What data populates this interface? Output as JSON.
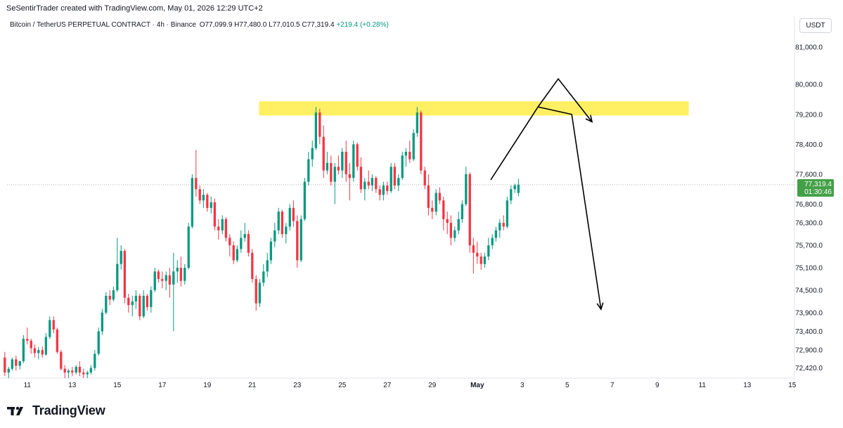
{
  "header": {
    "credit": "SeSentirTrader created with TradingView.com, May 01, 2026 12:29 UTC+2"
  },
  "symbol": {
    "title": "Bitcoin / TetherUS PERPETUAL CONTRACT · 4h · Binance",
    "ohlc": "O77,099.9  H77,480.0  L77,010.5  C77,319.4",
    "change": "+219.4 (+0.28%)"
  },
  "currency_button": "USDT",
  "price_badge": {
    "price": "77,319.4",
    "countdown": "01:30:46"
  },
  "footer": {
    "brand": "TradingView"
  },
  "colors": {
    "up": "#089981",
    "down": "#f23645",
    "zone": "#ffeb3b",
    "badge": "#43a047",
    "arrows": "#000000"
  },
  "chart_data": {
    "type": "candlestick",
    "interval": "4h",
    "y_scale_ticks": [
      "81,000.0",
      "80,000.0",
      "79,200.0",
      "78,400.0",
      "77,600.0",
      "76,800.0",
      "76,300.0",
      "75,700.0",
      "75,100.0",
      "74,500.0",
      "73,900.0",
      "73,400.0",
      "72,900.0",
      "72,420.0"
    ],
    "y_tick_values": [
      81000,
      80000,
      79200,
      78400,
      77600,
      76800,
      76300,
      75700,
      75100,
      74500,
      73900,
      73400,
      72900,
      72420
    ],
    "ylim": [
      72150,
      82200
    ],
    "x_ticks": [
      "11",
      "13",
      "15",
      "17",
      "19",
      "21",
      "23",
      "25",
      "27",
      "29",
      "May",
      "3",
      "5",
      "7",
      "9",
      "11",
      "13",
      "15"
    ],
    "x_tick_days": [
      11,
      13,
      15,
      17,
      19,
      21,
      23,
      25,
      27,
      29,
      31,
      33,
      35,
      37,
      39,
      41,
      43,
      45
    ],
    "xlim": [
      10.5,
      46.0
    ],
    "last_price_line": 77319.4,
    "resistance_zone": {
      "from_day": 21.3,
      "to_day": 40.4,
      "low": 79170,
      "high": 79550
    },
    "projection_path": [
      {
        "day": 31.6,
        "price": 77450
      },
      {
        "day": 33.7,
        "price": 79400
      },
      {
        "day": 34.6,
        "price": 80150
      },
      {
        "day": 36.1,
        "price": 79000
      }
    ],
    "projection_path_2": [
      {
        "day": 33.7,
        "price": 79400
      },
      {
        "day": 35.2,
        "price": 79200
      },
      {
        "day": 36.5,
        "price": 73990
      }
    ],
    "candles": [
      [
        10.0,
        72700,
        72850,
        72200,
        72300
      ],
      [
        10.17,
        72300,
        72450,
        72150,
        72400
      ],
      [
        10.33,
        72400,
        72700,
        72350,
        72650
      ],
      [
        10.5,
        72650,
        72750,
        72350,
        72480
      ],
      [
        10.67,
        72480,
        72620,
        72380,
        72600
      ],
      [
        10.83,
        72600,
        73300,
        72550,
        73200
      ],
      [
        11.0,
        73200,
        73500,
        73050,
        73150
      ],
      [
        11.17,
        73150,
        73200,
        72800,
        72950
      ],
      [
        11.33,
        72950,
        73050,
        72700,
        72820
      ],
      [
        11.5,
        72820,
        72980,
        72650,
        72900
      ],
      [
        11.67,
        72900,
        73000,
        72700,
        72780
      ],
      [
        11.83,
        72780,
        73350,
        72750,
        73250
      ],
      [
        12.0,
        73250,
        73800,
        73200,
        73700
      ],
      [
        12.17,
        73700,
        73800,
        73350,
        73450
      ],
      [
        12.33,
        73450,
        73500,
        72800,
        72850
      ],
      [
        12.5,
        72850,
        72900,
        72350,
        72400
      ],
      [
        12.67,
        72400,
        72500,
        72150,
        72300
      ],
      [
        12.83,
        72300,
        72400,
        72150,
        72350
      ],
      [
        13.0,
        72350,
        72450,
        72200,
        72300
      ],
      [
        13.17,
        72300,
        72500,
        72250,
        72450
      ],
      [
        13.33,
        72450,
        72600,
        72200,
        72300
      ],
      [
        13.5,
        72300,
        72400,
        72150,
        72250
      ],
      [
        13.67,
        72250,
        72350,
        72150,
        72300
      ],
      [
        13.83,
        72300,
        72500,
        72250,
        72420
      ],
      [
        14.0,
        72420,
        72900,
        72350,
        72800
      ],
      [
        14.17,
        72800,
        73500,
        72750,
        73400
      ],
      [
        14.33,
        73400,
        74000,
        73300,
        73900
      ],
      [
        14.5,
        73900,
        74450,
        73850,
        74350
      ],
      [
        14.67,
        74350,
        74500,
        74100,
        74250
      ],
      [
        14.83,
        74250,
        74600,
        74200,
        74500
      ],
      [
        15.0,
        74500,
        75900,
        74450,
        75200
      ],
      [
        15.17,
        75200,
        75700,
        75050,
        75550
      ],
      [
        15.33,
        75550,
        75600,
        74150,
        74300
      ],
      [
        15.5,
        74300,
        74400,
        73900,
        74100
      ],
      [
        15.67,
        74100,
        74350,
        73800,
        74200
      ],
      [
        15.83,
        74200,
        74500,
        74000,
        74350
      ],
      [
        16.0,
        74350,
        74400,
        73700,
        73800
      ],
      [
        16.17,
        73800,
        74500,
        73750,
        74350
      ],
      [
        16.33,
        74350,
        74400,
        73950,
        74050
      ],
      [
        16.5,
        74050,
        74600,
        73900,
        74500
      ],
      [
        16.67,
        74500,
        75100,
        74450,
        75000
      ],
      [
        16.83,
        75000,
        75050,
        74700,
        74800
      ],
      [
        17.0,
        74800,
        75000,
        74550,
        74750
      ],
      [
        17.17,
        74750,
        75000,
        74500,
        74900
      ],
      [
        17.33,
        74900,
        75100,
        74300,
        74650
      ],
      [
        17.5,
        74650,
        75500,
        73400,
        75000
      ],
      [
        17.67,
        75000,
        75300,
        74700,
        75100
      ],
      [
        17.83,
        75100,
        75400,
        74600,
        74750
      ],
      [
        18.0,
        74750,
        75200,
        74650,
        75100
      ],
      [
        18.17,
        75100,
        76300,
        75050,
        76200
      ],
      [
        18.33,
        76200,
        77600,
        76150,
        77500
      ],
      [
        18.5,
        77500,
        78250,
        77000,
        77200
      ],
      [
        18.67,
        77200,
        77300,
        76800,
        76900
      ],
      [
        18.83,
        76900,
        77200,
        76700,
        77050
      ],
      [
        19.0,
        77050,
        77100,
        76600,
        76700
      ],
      [
        19.17,
        76700,
        77000,
        76550,
        76850
      ],
      [
        19.33,
        76850,
        76950,
        76100,
        76200
      ],
      [
        19.5,
        76200,
        76400,
        75850,
        76100
      ],
      [
        19.67,
        76100,
        76500,
        76000,
        76400
      ],
      [
        19.83,
        76400,
        76450,
        75800,
        75900
      ],
      [
        20.0,
        75900,
        76000,
        75400,
        75700
      ],
      [
        20.17,
        75700,
        75800,
        75200,
        75300
      ],
      [
        20.33,
        75300,
        75700,
        75250,
        75600
      ],
      [
        20.5,
        75600,
        76100,
        75500,
        75900
      ],
      [
        20.67,
        75900,
        76300,
        75800,
        76000
      ],
      [
        20.83,
        76000,
        76100,
        75400,
        75500
      ],
      [
        21.0,
        75500,
        75600,
        74700,
        74800
      ],
      [
        21.17,
        74800,
        74900,
        73950,
        74150
      ],
      [
        21.33,
        74150,
        74800,
        74050,
        74700
      ],
      [
        21.5,
        74700,
        75200,
        74600,
        75000
      ],
      [
        21.67,
        75000,
        75500,
        74850,
        75300
      ],
      [
        21.83,
        75300,
        75900,
        75200,
        75800
      ],
      [
        22.0,
        75800,
        76300,
        75650,
        76100
      ],
      [
        22.17,
        76100,
        76700,
        76000,
        76600
      ],
      [
        22.33,
        76600,
        76650,
        75900,
        76000
      ],
      [
        22.5,
        76000,
        76300,
        75750,
        76200
      ],
      [
        22.67,
        76200,
        76800,
        76100,
        76700
      ],
      [
        22.83,
        76700,
        76900,
        76200,
        76350
      ],
      [
        23.0,
        76350,
        76500,
        75100,
        75300
      ],
      [
        23.17,
        75300,
        76500,
        75250,
        76400
      ],
      [
        23.33,
        76400,
        77500,
        76350,
        77400
      ],
      [
        23.5,
        77400,
        78200,
        77300,
        78000
      ],
      [
        23.67,
        78000,
        78500,
        77800,
        78300
      ],
      [
        23.83,
        78300,
        79400,
        78250,
        79250
      ],
      [
        24.0,
        79250,
        79350,
        78400,
        78600
      ],
      [
        24.17,
        78600,
        78900,
        77500,
        77700
      ],
      [
        24.33,
        77700,
        78200,
        77600,
        77900
      ],
      [
        24.5,
        77900,
        78100,
        77300,
        77400
      ],
      [
        24.67,
        77400,
        77900,
        76800,
        77800
      ],
      [
        24.83,
        77800,
        78100,
        77600,
        77700
      ],
      [
        25.0,
        77700,
        78300,
        77500,
        78200
      ],
      [
        25.17,
        78200,
        78500,
        77400,
        77600
      ],
      [
        25.33,
        77600,
        77900,
        76900,
        77500
      ],
      [
        25.5,
        77500,
        78500,
        77400,
        78400
      ],
      [
        25.67,
        78400,
        78450,
        77700,
        77800
      ],
      [
        25.83,
        77800,
        78050,
        77100,
        77200
      ],
      [
        26.0,
        77200,
        77500,
        76900,
        77400
      ],
      [
        26.17,
        77400,
        77700,
        77200,
        77300
      ],
      [
        26.33,
        77300,
        77600,
        77150,
        77500
      ],
      [
        26.5,
        77500,
        77550,
        77100,
        77200
      ],
      [
        26.67,
        77200,
        77300,
        76900,
        77050
      ],
      [
        26.83,
        77050,
        77400,
        76900,
        77300
      ],
      [
        27.0,
        77300,
        77400,
        77050,
        77150
      ],
      [
        27.17,
        77150,
        77900,
        77100,
        77800
      ],
      [
        27.33,
        77800,
        77900,
        77200,
        77300
      ],
      [
        27.5,
        77300,
        77600,
        77150,
        77500
      ],
      [
        27.67,
        77500,
        78200,
        77450,
        78100
      ],
      [
        27.83,
        78100,
        78300,
        77800,
        78200
      ],
      [
        28.0,
        78200,
        78500,
        77900,
        78000
      ],
      [
        28.17,
        78000,
        78800,
        77950,
        78700
      ],
      [
        28.33,
        78700,
        79400,
        78600,
        79250
      ],
      [
        28.5,
        79250,
        79300,
        77600,
        77700
      ],
      [
        28.67,
        77700,
        77800,
        77200,
        77300
      ],
      [
        28.83,
        77300,
        77600,
        76500,
        76700
      ],
      [
        29.0,
        76700,
        76900,
        76400,
        76600
      ],
      [
        29.17,
        76600,
        77200,
        76500,
        77100
      ],
      [
        29.33,
        77100,
        77250,
        76800,
        76900
      ],
      [
        29.5,
        76900,
        77000,
        76100,
        76400
      ],
      [
        29.67,
        76400,
        76600,
        76000,
        76300
      ],
      [
        29.83,
        76300,
        76500,
        75700,
        75900
      ],
      [
        30.0,
        75900,
        76200,
        75800,
        76100
      ],
      [
        30.17,
        76100,
        76600,
        76000,
        76400
      ],
      [
        30.33,
        76400,
        76900,
        76300,
        76800
      ],
      [
        30.5,
        76800,
        77800,
        76750,
        77600
      ],
      [
        30.67,
        77600,
        77650,
        75500,
        75700
      ],
      [
        30.83,
        75700,
        75900,
        74950,
        75500
      ],
      [
        31.0,
        75500,
        75800,
        75200,
        75400
      ],
      [
        31.17,
        75400,
        75500,
        75050,
        75200
      ],
      [
        31.33,
        75200,
        75500,
        75100,
        75400
      ],
      [
        31.5,
        75400,
        75900,
        75300,
        75700
      ],
      [
        31.67,
        75700,
        76000,
        75600,
        75900
      ],
      [
        31.83,
        75900,
        76200,
        75800,
        76100
      ],
      [
        32.0,
        76100,
        76400,
        75900,
        76300
      ],
      [
        32.17,
        76300,
        76500,
        76100,
        76200
      ],
      [
        32.33,
        76200,
        77000,
        76150,
        76900
      ],
      [
        32.5,
        76900,
        77300,
        76800,
        77200
      ],
      [
        32.67,
        77200,
        77350,
        77100,
        77300
      ],
      [
        32.83,
        77099.9,
        77480,
        77010.5,
        77319.4
      ]
    ]
  }
}
